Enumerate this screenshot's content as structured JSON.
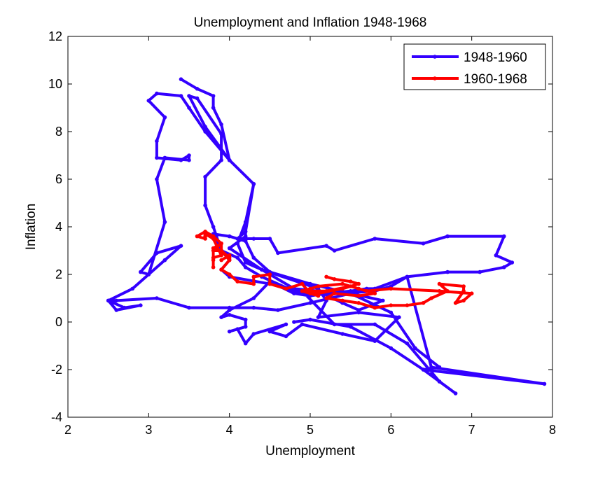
{
  "chart_data": {
    "type": "line",
    "title": "Unemployment and Inflation 1948-1968",
    "xlabel": "Unemployment",
    "ylabel": "Inflation",
    "xlim": [
      2,
      8
    ],
    "ylim": [
      -4,
      12
    ],
    "xticks": [
      "2",
      "3",
      "4",
      "5",
      "6",
      "7",
      "8"
    ],
    "yticks": [
      "-4",
      "-2",
      "0",
      "2",
      "4",
      "6",
      "8",
      "10",
      "12"
    ],
    "grid": false,
    "legend_position": "top-right",
    "series": [
      {
        "name": "1948-1960",
        "color": "#3300ff",
        "points": [
          [
            3.4,
            10.2
          ],
          [
            3.6,
            9.8
          ],
          [
            3.8,
            9.5
          ],
          [
            3.8,
            9.0
          ],
          [
            3.9,
            8.3
          ],
          [
            4.0,
            6.8
          ],
          [
            4.3,
            5.8
          ],
          [
            4.2,
            3.8
          ],
          [
            4.1,
            3.5
          ],
          [
            4.3,
            3.5
          ],
          [
            4.5,
            3.5
          ],
          [
            4.6,
            2.9
          ],
          [
            5.2,
            3.2
          ],
          [
            5.3,
            3.0
          ],
          [
            5.8,
            3.5
          ],
          [
            6.4,
            3.3
          ],
          [
            6.7,
            3.6
          ],
          [
            7.4,
            3.6
          ],
          [
            7.3,
            2.8
          ],
          [
            7.5,
            2.5
          ],
          [
            7.4,
            2.3
          ],
          [
            7.1,
            2.1
          ],
          [
            6.7,
            2.1
          ],
          [
            6.2,
            1.9
          ],
          [
            6.0,
            1.5
          ],
          [
            5.8,
            1.3
          ],
          [
            5.4,
            1.2
          ],
          [
            5.0,
            1.2
          ],
          [
            4.8,
            1.3
          ],
          [
            4.4,
            1.9
          ],
          [
            4.2,
            2.3
          ],
          [
            4.1,
            2.7
          ],
          [
            3.9,
            3.0
          ],
          [
            3.8,
            3.7
          ],
          [
            4.0,
            3.6
          ],
          [
            4.2,
            3.4
          ],
          [
            4.3,
            2.7
          ],
          [
            4.5,
            2.1
          ],
          [
            5.0,
            1.6
          ],
          [
            5.5,
            1.2
          ],
          [
            6.0,
            0.4
          ],
          [
            6.3,
            -1.1
          ],
          [
            6.6,
            -1.9
          ],
          [
            6.4,
            -2.0
          ],
          [
            6.6,
            -2.5
          ],
          [
            6.8,
            -3.0
          ],
          [
            6.6,
            -2.5
          ],
          [
            6.2,
            -0.9
          ],
          [
            5.8,
            -0.1
          ],
          [
            5.3,
            -0.1
          ],
          [
            4.9,
            1.3
          ],
          [
            4.5,
            1.6
          ],
          [
            4.0,
            1.9
          ],
          [
            3.9,
            2.2
          ],
          [
            4.0,
            2.6
          ],
          [
            3.9,
            3.0
          ],
          [
            3.8,
            4.0
          ],
          [
            3.7,
            4.9
          ],
          [
            3.7,
            6.1
          ],
          [
            3.9,
            6.8
          ],
          [
            3.9,
            7.9
          ],
          [
            3.6,
            9.4
          ],
          [
            3.5,
            9.5
          ],
          [
            3.7,
            8.2
          ],
          [
            4.0,
            6.8
          ],
          [
            4.3,
            5.8
          ],
          [
            4.2,
            4.2
          ],
          [
            4.2,
            3.6
          ],
          [
            4.0,
            3.1
          ],
          [
            4.4,
            2.2
          ],
          [
            4.8,
            1.4
          ],
          [
            5.1,
            1.3
          ],
          [
            5.4,
            0.8
          ],
          [
            5.6,
            0.5
          ],
          [
            5.9,
            0.9
          ],
          [
            5.5,
            1.2
          ],
          [
            5.0,
            0.8
          ],
          [
            4.6,
            0.5
          ],
          [
            4.3,
            0.6
          ],
          [
            4.0,
            0.6
          ],
          [
            3.5,
            0.6
          ],
          [
            3.1,
            1.0
          ],
          [
            2.6,
            0.9
          ],
          [
            2.5,
            0.9
          ],
          [
            2.7,
            0.6
          ],
          [
            2.9,
            0.7
          ],
          [
            2.6,
            0.5
          ],
          [
            2.5,
            0.9
          ],
          [
            2.8,
            1.4
          ],
          [
            3.0,
            2.0
          ],
          [
            3.2,
            2.6
          ],
          [
            3.4,
            3.2
          ],
          [
            3.1,
            2.9
          ],
          [
            2.9,
            2.1
          ],
          [
            3.0,
            2.0
          ],
          [
            3.2,
            4.2
          ],
          [
            3.1,
            6.0
          ],
          [
            3.2,
            6.9
          ],
          [
            3.5,
            6.8
          ],
          [
            3.5,
            7.0
          ],
          [
            3.4,
            6.8
          ],
          [
            3.1,
            6.9
          ],
          [
            3.1,
            7.6
          ],
          [
            3.2,
            8.6
          ],
          [
            3.0,
            9.3
          ],
          [
            3.1,
            9.6
          ],
          [
            3.4,
            9.5
          ],
          [
            3.5,
            9.0
          ],
          [
            3.7,
            8.0
          ],
          [
            4.0,
            6.8
          ],
          [
            4.3,
            5.8
          ],
          [
            4.2,
            4.2
          ],
          [
            4.1,
            3.3
          ],
          [
            4.2,
            2.5
          ],
          [
            4.4,
            2.2
          ],
          [
            5.1,
            1.4
          ],
          [
            5.2,
            0.9
          ],
          [
            5.1,
            0.2
          ],
          [
            5.6,
            0.4
          ],
          [
            6.1,
            0.2
          ],
          [
            5.8,
            -0.8
          ],
          [
            5.4,
            -0.5
          ],
          [
            4.9,
            -0.1
          ],
          [
            4.7,
            -0.6
          ],
          [
            4.5,
            -0.4
          ],
          [
            4.7,
            -0.1
          ],
          [
            4.3,
            -0.5
          ],
          [
            4.2,
            -0.9
          ],
          [
            4.1,
            -0.3
          ],
          [
            4.0,
            -0.4
          ],
          [
            4.2,
            -0.2
          ],
          [
            4.2,
            0.1
          ],
          [
            4.0,
            0.3
          ],
          [
            3.9,
            0.2
          ],
          [
            4.0,
            0.5
          ],
          [
            4.3,
            1.0
          ],
          [
            4.5,
            1.7
          ],
          [
            4.8,
            1.2
          ],
          [
            5.0,
            1.1
          ],
          [
            5.2,
            1.2
          ],
          [
            5.5,
            1.3
          ],
          [
            5.7,
            1.4
          ],
          [
            5.8,
            1.4
          ],
          [
            6.2,
            1.9
          ],
          [
            6.5,
            -1.9
          ],
          [
            7.9,
            -2.6
          ],
          [
            6.4,
            -2.0
          ],
          [
            6.0,
            -1.1
          ],
          [
            5.5,
            -0.2
          ],
          [
            5.0,
            0.1
          ],
          [
            4.8,
            0.0
          ]
        ]
      },
      {
        "name": "1960-1968",
        "color": "#ff0000",
        "points": [
          [
            5.2,
            1.9
          ],
          [
            5.3,
            1.8
          ],
          [
            5.5,
            1.7
          ],
          [
            5.6,
            1.6
          ],
          [
            5.4,
            1.4
          ],
          [
            5.1,
            1.2
          ],
          [
            5.0,
            1.3
          ],
          [
            5.2,
            1.3
          ],
          [
            5.5,
            1.5
          ],
          [
            5.7,
            1.3
          ],
          [
            6.0,
            1.4
          ],
          [
            6.6,
            1.3
          ],
          [
            7.0,
            1.2
          ],
          [
            6.9,
            0.9
          ],
          [
            6.8,
            0.8
          ],
          [
            6.9,
            1.3
          ],
          [
            6.9,
            1.5
          ],
          [
            6.6,
            1.6
          ],
          [
            6.7,
            1.3
          ],
          [
            6.5,
            1.0
          ],
          [
            6.4,
            0.8
          ],
          [
            6.2,
            0.7
          ],
          [
            6.0,
            0.7
          ],
          [
            5.8,
            0.6
          ],
          [
            5.6,
            0.8
          ],
          [
            5.4,
            0.9
          ],
          [
            5.2,
            1.0
          ],
          [
            5.3,
            1.2
          ],
          [
            5.6,
            1.1
          ],
          [
            5.8,
            1.2
          ],
          [
            5.6,
            1.4
          ],
          [
            5.4,
            1.6
          ],
          [
            5.1,
            1.5
          ],
          [
            5.0,
            1.4
          ],
          [
            4.9,
            1.3
          ],
          [
            5.1,
            1.1
          ],
          [
            5.0,
            1.2
          ],
          [
            4.9,
            1.6
          ],
          [
            4.7,
            1.4
          ],
          [
            4.5,
            1.6
          ],
          [
            4.5,
            2.0
          ],
          [
            4.3,
            1.9
          ],
          [
            4.3,
            1.6
          ],
          [
            4.1,
            1.7
          ],
          [
            4.0,
            2.0
          ],
          [
            3.9,
            2.2
          ],
          [
            4.0,
            2.6
          ],
          [
            3.9,
            3.0
          ],
          [
            3.8,
            3.0
          ],
          [
            3.9,
            3.3
          ],
          [
            3.8,
            3.1
          ],
          [
            3.8,
            2.6
          ],
          [
            3.8,
            2.3
          ],
          [
            3.8,
            2.7
          ],
          [
            3.9,
            2.8
          ],
          [
            3.8,
            3.5
          ],
          [
            3.7,
            3.7
          ],
          [
            3.7,
            3.6
          ],
          [
            3.7,
            3.5
          ],
          [
            3.6,
            3.6
          ],
          [
            3.7,
            3.8
          ],
          [
            3.8,
            3.6
          ],
          [
            3.9,
            3.3
          ],
          [
            3.9,
            3.0
          ],
          [
            4.0,
            2.7
          ],
          [
            4.0,
            2.8
          ],
          [
            3.9,
            2.6
          ]
        ]
      }
    ]
  }
}
